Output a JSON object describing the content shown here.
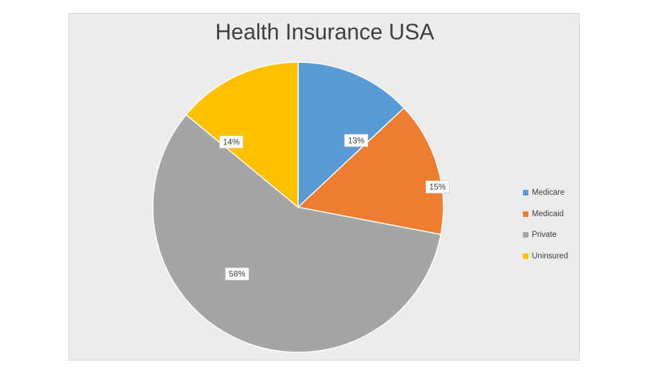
{
  "chart_data": {
    "type": "pie",
    "title": "Health Insurance USA",
    "categories": [
      "Medicare",
      "Medicaid",
      "Private",
      "Uninsured"
    ],
    "values": [
      13,
      15,
      58,
      14
    ],
    "data_labels": [
      "13%",
      "15%",
      "58%",
      "14%"
    ],
    "colors": [
      "#5b9bd5",
      "#ed7d31",
      "#a5a5a5",
      "#ffc000"
    ],
    "legend_position": "right"
  }
}
